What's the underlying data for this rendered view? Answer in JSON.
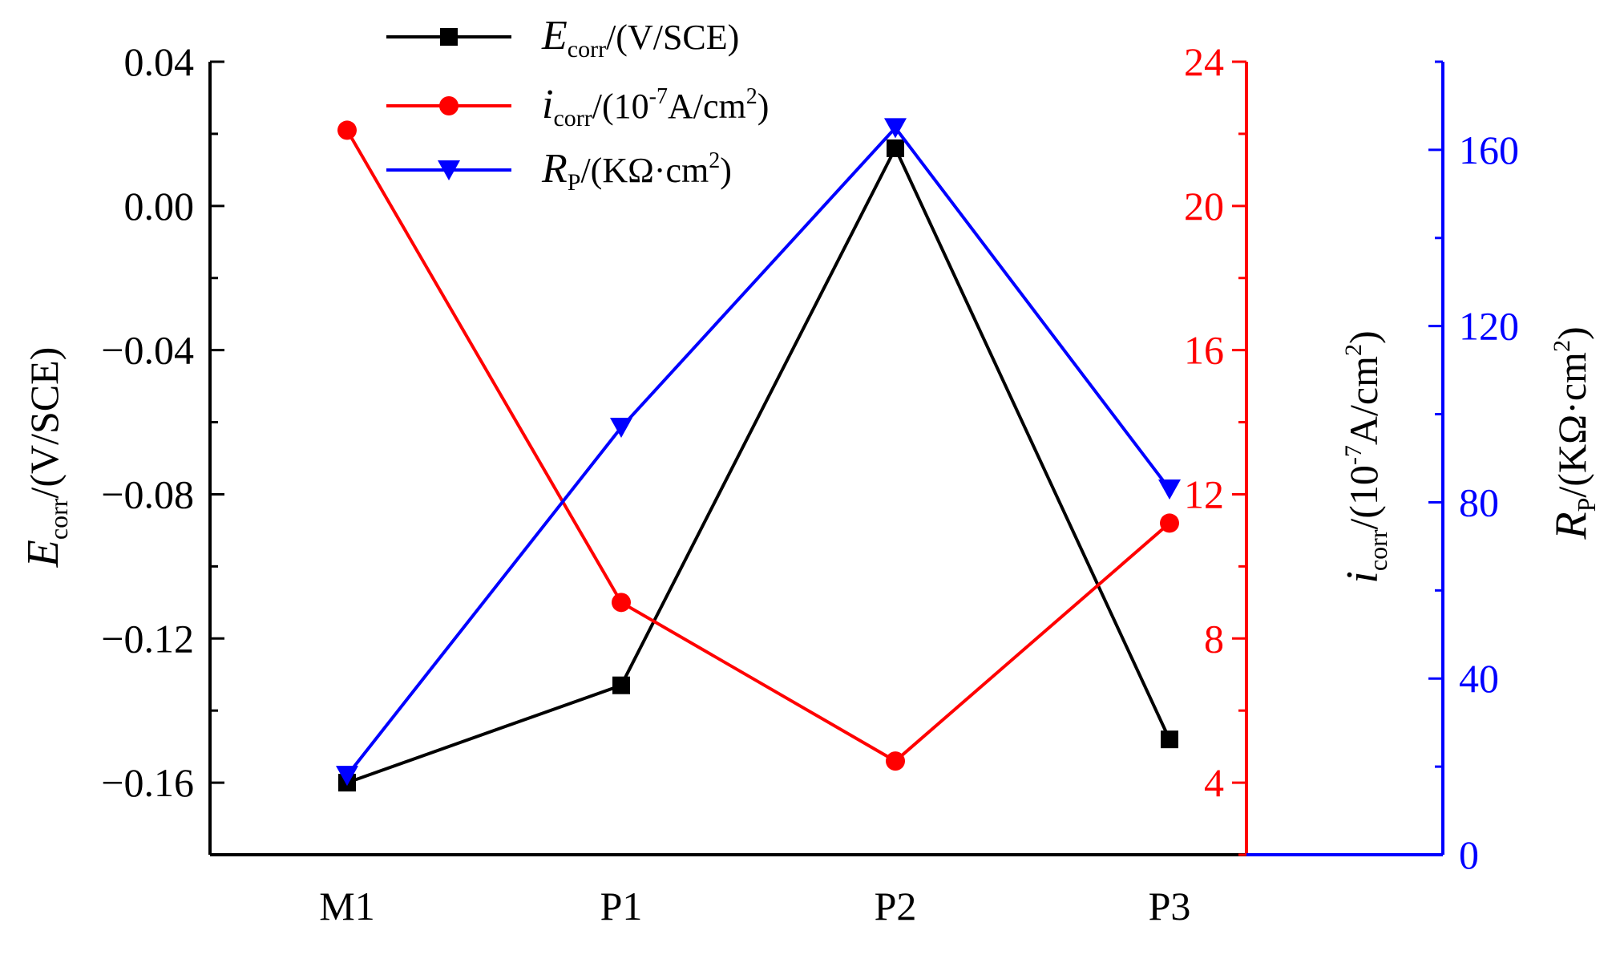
{
  "chart_data": {
    "type": "line",
    "categories": [
      "M1",
      "P1",
      "P2",
      "P3"
    ],
    "axes": {
      "left": {
        "label_main": "E",
        "label_sub": "corr",
        "label_rest": "/(V/SCE)",
        "ylim": [
          -0.18,
          0.04
        ],
        "ticks": [
          0.04,
          0.0,
          -0.04,
          -0.08,
          -0.12,
          -0.16
        ],
        "tick_labels": [
          "0.04",
          "0.00",
          "−0.04",
          "−0.08",
          "−0.12",
          "−0.16"
        ],
        "color": "#000000"
      },
      "right1": {
        "label_main": "i",
        "label_sub": "corr",
        "label_pre": "/(10",
        "label_sup": "-7",
        "label_mid": "A/cm",
        "label_sup2": "2",
        "label_end": ")",
        "ylim": [
          2,
          24
        ],
        "ticks": [
          24,
          20,
          16,
          12,
          8,
          4
        ],
        "tick_labels": [
          "24",
          "20",
          "16",
          "12",
          "8",
          "4"
        ],
        "color": "#ff0000"
      },
      "right2": {
        "label_main": "R",
        "label_sub": "P",
        "label_pre": "/(KΩ·cm",
        "label_sup": "2",
        "label_end": ")",
        "ylim": [
          0,
          180
        ],
        "ticks": [
          160,
          120,
          80,
          40,
          0
        ],
        "tick_labels": [
          "160",
          "120",
          "80",
          "40",
          "0"
        ],
        "color": "#0000ff"
      }
    },
    "series": [
      {
        "name": "E_corr",
        "axis": "left",
        "color": "#000000",
        "marker": "square",
        "values": [
          -0.16,
          -0.133,
          0.016,
          -0.148
        ]
      },
      {
        "name": "i_corr",
        "axis": "right1",
        "color": "#ff0000",
        "marker": "circle",
        "values": [
          22.1,
          9.0,
          4.6,
          11.2
        ]
      },
      {
        "name": "R_P",
        "axis": "right2",
        "color": "#0000ff",
        "marker": "triangle-down",
        "values": [
          18,
          97,
          165,
          83
        ]
      }
    ],
    "legend": [
      {
        "series": "E_corr",
        "main": "E",
        "sub": "corr",
        "rest": "/(V/SCE)"
      },
      {
        "series": "i_corr",
        "main": "i",
        "sub": "corr",
        "rest": "/(10",
        "sup": "-7",
        "rest2": "A/cm",
        "sup2": "2",
        "end": ")"
      },
      {
        "series": "R_P",
        "main": "R",
        "sub": "P",
        "rest": "/(KΩ·cm",
        "sup": "2",
        "end": ")"
      }
    ],
    "legend_position": "top-left"
  }
}
